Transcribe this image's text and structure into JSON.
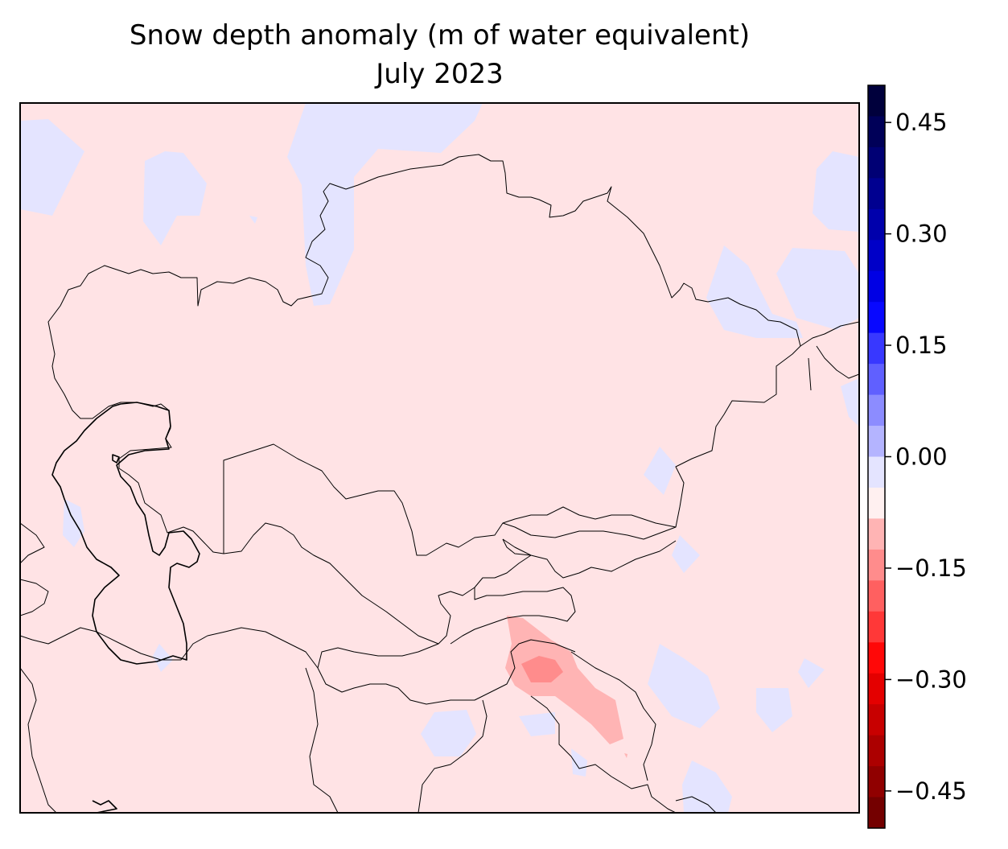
{
  "title": "Snow depth anomaly (m of water equivalent)",
  "subtitle": "July 2023",
  "colorbar": {
    "range": [
      -0.5,
      0.5
    ],
    "step": 0.05,
    "ticks": [
      {
        "value": 0.45,
        "label": "0.45"
      },
      {
        "value": 0.3,
        "label": "0.30"
      },
      {
        "value": 0.15,
        "label": "0.15"
      },
      {
        "value": 0.0,
        "label": "0.00"
      },
      {
        "value": -0.15,
        "label": "−0.15"
      },
      {
        "value": -0.3,
        "label": "−0.30"
      },
      {
        "value": -0.45,
        "label": "−0.45"
      }
    ],
    "colors_high_to_low": [
      "#00003c",
      "#000058",
      "#000074",
      "#000090",
      "#0000ac",
      "#0000c8",
      "#0000e4",
      "#0808ff",
      "#3838ff",
      "#6060ff",
      "#8c8cff",
      "#b4b4ff",
      "#e4e4ff",
      "#fff0f0",
      "#ffb4b4",
      "#ff8c8c",
      "#ff6060",
      "#ff3838",
      "#ff0808",
      "#e40000",
      "#c80000",
      "#ac0000",
      "#900000",
      "#740000"
    ]
  },
  "map": {
    "background_color": "#ffe3e5",
    "positive_anomaly_color": "#e4e4ff",
    "negative_anomaly_light": "#ffb4b4",
    "negative_anomaly_mid": "#ff8c8c",
    "boundary_color": "#000000"
  }
}
